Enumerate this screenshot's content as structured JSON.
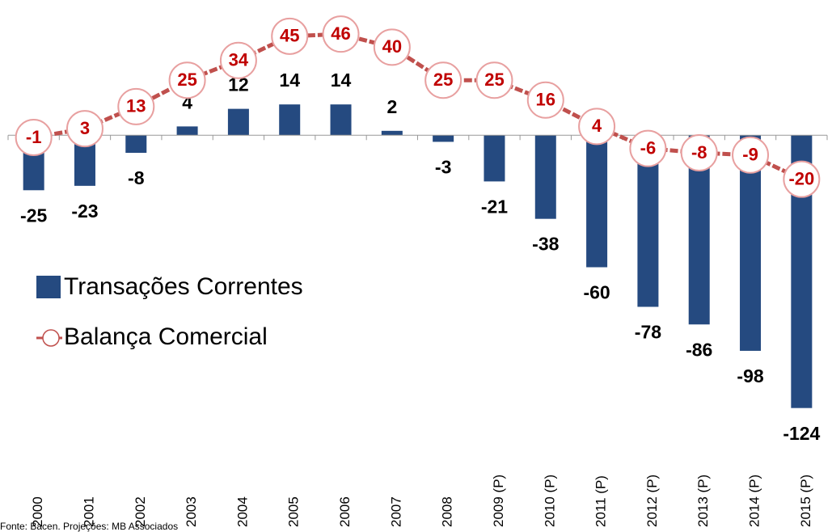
{
  "chart_data": {
    "type": "bar",
    "categories": [
      "2000",
      "2001",
      "2002",
      "2003",
      "2004",
      "2005",
      "2006",
      "2007",
      "2008",
      "2009 (P)",
      "2010 (P)",
      "2011 (P)",
      "2012 (P)",
      "2013 (P)",
      "2014 (P)",
      "2015 (P)"
    ],
    "series": [
      {
        "name": "Transações Correntes",
        "type": "bar",
        "color": "#254a80",
        "values": [
          -25,
          -23,
          -8,
          4,
          12,
          14,
          14,
          2,
          -3,
          -21,
          -38,
          -60,
          -78,
          -86,
          -98,
          -124
        ]
      },
      {
        "name": "Balança Comercial",
        "type": "line",
        "color": "#c0504d",
        "values": [
          -1,
          3,
          13,
          25,
          34,
          45,
          46,
          40,
          25,
          25,
          16,
          4,
          -6,
          -8,
          -9,
          -20
        ]
      }
    ],
    "ylim": [
      -130,
      60
    ],
    "legend": "left",
    "source": "Fonte: Bacen. Projeções: MB Associados"
  }
}
